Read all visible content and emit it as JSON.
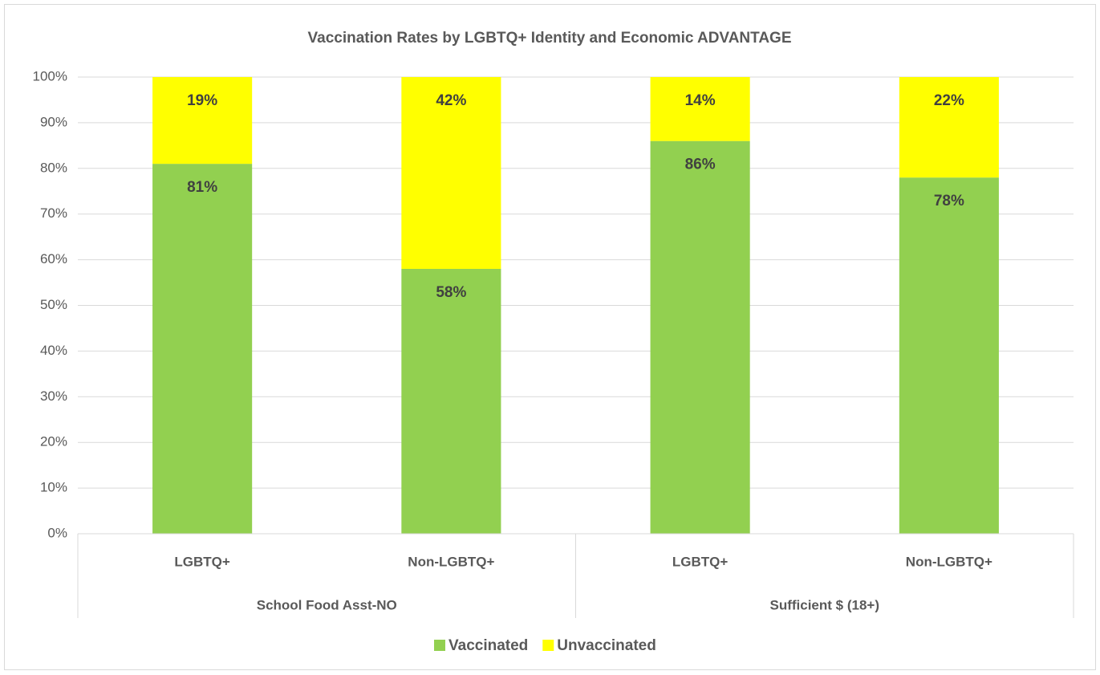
{
  "chart_data": {
    "type": "stacked_bar",
    "title": "Vaccination Rates by LGBTQ+ Identity and Economic ADVANTAGE",
    "categories": [
      "LGBTQ+",
      "Non-LGBTQ+",
      "LGBTQ+",
      "Non-LGBTQ+"
    ],
    "groups": [
      "School Food Asst-NO",
      "Sufficient $ (18+)"
    ],
    "series": [
      {
        "name": "Vaccinated",
        "color": "#92d050",
        "values": [
          81,
          58,
          86,
          78
        ],
        "value_labels": [
          "81%",
          "58%",
          "86%",
          "78%"
        ]
      },
      {
        "name": "Unvaccinated",
        "color": "#ffff00",
        "values": [
          19,
          42,
          14,
          22
        ],
        "value_labels": [
          "19%",
          "42%",
          "14%",
          "22%"
        ]
      }
    ],
    "ylim": [
      0,
      100
    ],
    "yticks": [
      {
        "value": 0,
        "label": "0%"
      },
      {
        "value": 10,
        "label": "10%"
      },
      {
        "value": 20,
        "label": "20%"
      },
      {
        "value": 30,
        "label": "30%"
      },
      {
        "value": 40,
        "label": "40%"
      },
      {
        "value": 50,
        "label": "50%"
      },
      {
        "value": 60,
        "label": "60%"
      },
      {
        "value": 70,
        "label": "70%"
      },
      {
        "value": 80,
        "label": "80%"
      },
      {
        "value": 90,
        "label": "90%"
      },
      {
        "value": 100,
        "label": "100%"
      }
    ],
    "grid": true,
    "legend": "bottom"
  }
}
